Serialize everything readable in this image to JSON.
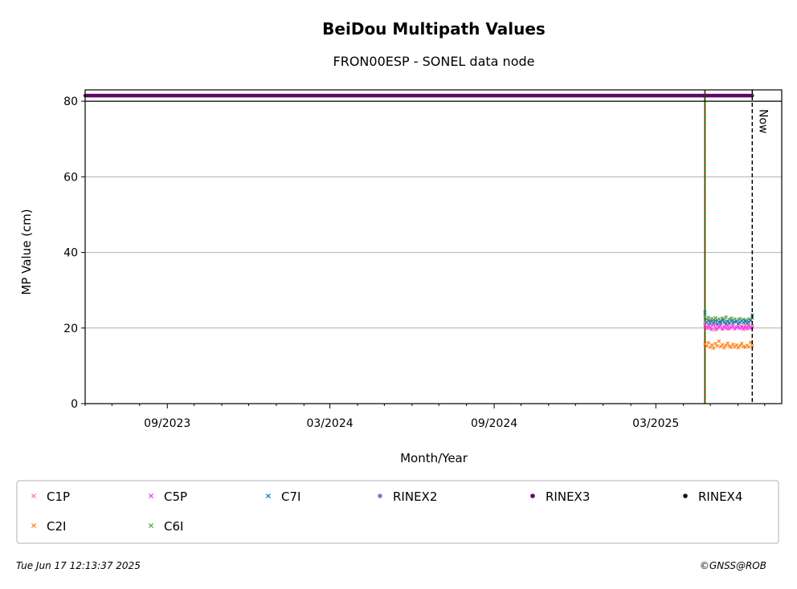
{
  "chart_data": {
    "type": "scatter",
    "title": "BeiDou Multipath Values",
    "subtitle": "FRON00ESP - SONEL data node",
    "xlabel": "Month/Year",
    "ylabel": "MP Value (cm)",
    "ylim": [
      0,
      83
    ],
    "xlim": [
      "2023-06-01",
      "2025-07-20"
    ],
    "x_ticks": [
      {
        "date": "2023-09-01",
        "label": "09/2023"
      },
      {
        "date": "2024-03-01",
        "label": "03/2024"
      },
      {
        "date": "2024-09-01",
        "label": "09/2024"
      },
      {
        "date": "2025-03-01",
        "label": "03/2025"
      }
    ],
    "y_ticks": [
      0,
      20,
      40,
      60,
      80
    ],
    "grid": "horizontal",
    "rinex_line": {
      "start": "2023-06-01",
      "end": "2025-06-17",
      "value": 81.5,
      "series": "RINEX3"
    },
    "event_line_date": "2025-04-25",
    "now": {
      "date": "2025-06-17",
      "label": "Now"
    },
    "series": [
      {
        "name": "C1P",
        "color": "#f08080",
        "marker": "x",
        "start": "2025-04-25",
        "end": "2025-06-17",
        "values": [
          21.5,
          20.3,
          21.0,
          19.8,
          20.6,
          21.2,
          19.5,
          20.9,
          20.1,
          21.4,
          19.9,
          20.4,
          20.8,
          19.7,
          21.0,
          20.2,
          20.6,
          19.8,
          20.3,
          21.1,
          20.0,
          20.5,
          19.6,
          20.7,
          20.2,
          20.9,
          19.9,
          20.4
        ]
      },
      {
        "name": "C2I",
        "color": "#ff7f0e",
        "marker": "x",
        "start": "2025-04-25",
        "end": "2025-06-17",
        "values": [
          15.8,
          15.2,
          16.1,
          14.9,
          15.5,
          14.7,
          15.9,
          15.3,
          16.5,
          15.1,
          15.6,
          14.8,
          15.4,
          16.0,
          15.2,
          14.9,
          15.7,
          15.0,
          15.5,
          14.8,
          15.3,
          15.9,
          15.1,
          14.9,
          15.4,
          15.0,
          16.2,
          15.3
        ]
      },
      {
        "name": "C5P",
        "color": "#ff33ff",
        "marker": "x",
        "start": "2025-04-25",
        "end": "2025-06-17",
        "values": [
          20.8,
          19.9,
          20.5,
          20.2,
          19.6,
          20.9,
          20.1,
          19.8,
          20.4,
          20.7,
          19.7,
          20.3,
          20.0,
          20.6,
          19.9,
          20.2,
          20.5,
          19.8,
          20.1,
          20.4,
          19.9,
          20.3,
          20.0,
          20.2,
          19.8,
          20.5,
          20.1,
          20.3
        ]
      },
      {
        "name": "C6I",
        "color": "#5a9e4a",
        "marker": "x",
        "start": "2025-04-25",
        "end": "2025-06-17",
        "values": [
          23.0,
          22.3,
          22.8,
          21.9,
          22.5,
          22.1,
          22.7,
          22.0,
          22.4,
          21.8,
          22.6,
          22.2,
          22.9,
          21.9,
          22.3,
          22.6,
          22.0,
          22.4,
          21.8,
          22.2,
          22.5,
          21.9,
          22.3,
          22.1,
          22.0,
          22.4,
          22.2,
          22.6
        ]
      },
      {
        "name": "C7I",
        "color": "#1f77b4",
        "marker": "x",
        "start": "2025-04-25",
        "end": "2025-06-17",
        "values": [
          24.2,
          21.5,
          22.0,
          21.2,
          21.8,
          21.4,
          21.9,
          21.1,
          21.6,
          21.3,
          22.1,
          21.5,
          21.2,
          21.7,
          21.4,
          21.9,
          21.3,
          21.6,
          21.8,
          21.2,
          21.5,
          21.9,
          21.4,
          21.7,
          21.3,
          21.6,
          22.0,
          23.5
        ]
      },
      {
        "name": "RINEX2",
        "color": "#7b7fbf",
        "marker": "o"
      },
      {
        "name": "RINEX3",
        "color": "#5a0a64",
        "marker": "o"
      },
      {
        "name": "RINEX4",
        "color": "#1a0020",
        "marker": "o"
      }
    ],
    "legend_position": "bottom"
  },
  "footer": {
    "timestamp": "Tue Jun 17 12:13:37 2025",
    "credit": "©GNSS@ROB"
  }
}
